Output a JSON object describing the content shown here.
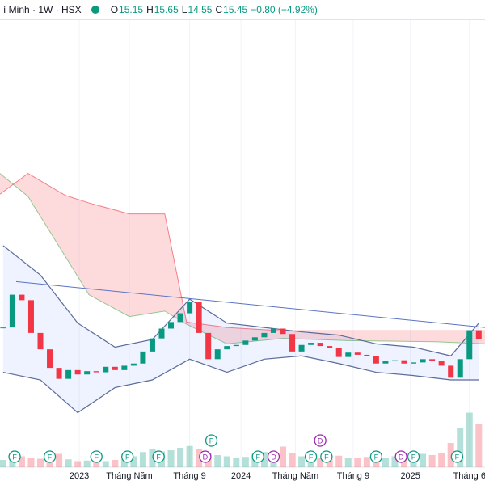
{
  "header": {
    "symbol": "í Minh · 1W · HSX",
    "ohlc": [
      {
        "key": "O",
        "value": "15.15"
      },
      {
        "key": "H",
        "value": "15.65"
      },
      {
        "key": "L",
        "value": "14.55"
      },
      {
        "key": "C",
        "value": "15.45"
      }
    ],
    "change": "−0.80 (−4.92%)"
  },
  "chart_data": {
    "type": "candlestick",
    "xlim": [
      0,
      156
    ],
    "ylim": [
      8,
      45
    ],
    "xticks": [
      {
        "value": 25.5,
        "label": "2023"
      },
      {
        "value": 41.6,
        "label": "Tháng Năm"
      },
      {
        "value": 61,
        "label": "Tháng 9"
      },
      {
        "value": 77.5,
        "label": "2024"
      },
      {
        "value": 95,
        "label": "Tháng Năm"
      },
      {
        "value": 113.6,
        "label": "Tháng 9"
      },
      {
        "value": 132,
        "label": "2025"
      },
      {
        "value": 151,
        "label": "Tháng 6"
      }
    ],
    "up_color": "#089981",
    "down_color": "#f23645",
    "x": [
      1,
      4,
      7,
      10,
      13,
      16,
      19,
      22,
      25,
      28,
      31,
      34,
      37,
      40,
      43,
      46,
      49,
      52,
      55,
      58,
      61,
      64,
      67,
      70,
      73,
      76,
      79,
      82,
      85,
      88,
      91,
      94,
      97,
      100,
      103,
      106,
      109,
      112,
      115,
      118,
      121,
      124,
      127,
      130,
      133,
      136,
      139,
      142,
      145,
      148,
      151,
      154
    ],
    "close": [
      16.5,
      19.5,
      19.0,
      16.0,
      14.5,
      12.8,
      11.8,
      12.6,
      12.2,
      12.5,
      12.4,
      12.9,
      12.6,
      13.0,
      13.2,
      14.3,
      15.5,
      16.4,
      17.0,
      17.8,
      18.8,
      16.0,
      13.6,
      14.5,
      14.8,
      14.9,
      15.3,
      15.6,
      16.0,
      16.4,
      15.9,
      14.3,
      14.9,
      15.1,
      14.8,
      14.6,
      13.8,
      14.2,
      14.0,
      13.9,
      13.2,
      13.4,
      13.5,
      13.2,
      13.3,
      13.6,
      13.4,
      13.0,
      11.9,
      13.6,
      16.25,
      15.45
    ],
    "volume": [
      1.2,
      2.0,
      1.8,
      1.5,
      1.4,
      1.6,
      2.2,
      1.3,
      1.0,
      1.1,
      0.9,
      1.0,
      1.2,
      1.3,
      1.8,
      2.5,
      3.0,
      2.6,
      2.8,
      3.2,
      3.5,
      3.0,
      2.4,
      2.0,
      1.8,
      1.6,
      1.7,
      2.2,
      2.5,
      2.0,
      3.4,
      2.3,
      1.8,
      1.6,
      1.5,
      1.4,
      1.9,
      1.6,
      1.5,
      1.7,
      1.9,
      1.6,
      1.8,
      2.0,
      2.6,
      2.2,
      2.0,
      2.3,
      4.0,
      6.5,
      9.0,
      7.2
    ],
    "volume_lim": [
      0,
      10
    ],
    "bands": {
      "color": "#5b6b9a",
      "x": [
        1,
        13,
        25,
        37,
        49,
        61,
        73,
        85,
        97,
        109,
        121,
        133,
        145,
        154
      ],
      "upper": [
        24.0,
        21.3,
        16.9,
        14.7,
        15.4,
        19.1,
        16.9,
        16.5,
        16.1,
        15.8,
        15.0,
        14.7,
        13.9,
        16.9
      ],
      "lower": [
        12.4,
        11.7,
        8.7,
        11.0,
        11.7,
        13.6,
        12.4,
        13.6,
        13.9,
        13.2,
        12.4,
        12.1,
        11.7,
        11.7
      ]
    },
    "cloud": {
      "x": [
        0,
        9,
        21,
        28.6,
        41.6,
        53,
        60,
        73,
        91,
        112,
        140,
        156
      ],
      "span_a": [
        30.6,
        28.5,
        23.0,
        19.5,
        17.5,
        18.0,
        16.8,
        15.0,
        15.5,
        15.3,
        15.2,
        15.0
      ],
      "span_b": [
        28.7,
        30.6,
        28.6,
        27.9,
        26.9,
        26.9,
        17.0,
        16.5,
        16.2,
        16.2,
        16.2,
        16.2
      ],
      "up_color": "#4caf50",
      "down_color": "#f23645"
    },
    "trendline": {
      "x": [
        5.2,
        156
      ],
      "y": [
        20.7,
        16.5
      ],
      "color": "#5b74c4"
    },
    "events": [
      {
        "x": 4.7,
        "label": "F"
      },
      {
        "x": 16,
        "label": "F"
      },
      {
        "x": 31,
        "label": "F"
      },
      {
        "x": 41,
        "label": "F"
      },
      {
        "x": 51,
        "label": "F"
      },
      {
        "x": 66,
        "label": "D"
      },
      {
        "x": 68,
        "label": "F"
      },
      {
        "x": 83,
        "label": "F"
      },
      {
        "x": 88,
        "label": "D"
      },
      {
        "x": 100,
        "label": "F"
      },
      {
        "x": 103,
        "label": "D"
      },
      {
        "x": 105,
        "label": "F"
      },
      {
        "x": 121,
        "label": "F"
      },
      {
        "x": 129,
        "label": "D"
      },
      {
        "x": 133,
        "label": "F"
      },
      {
        "x": 147,
        "label": "F"
      }
    ]
  }
}
